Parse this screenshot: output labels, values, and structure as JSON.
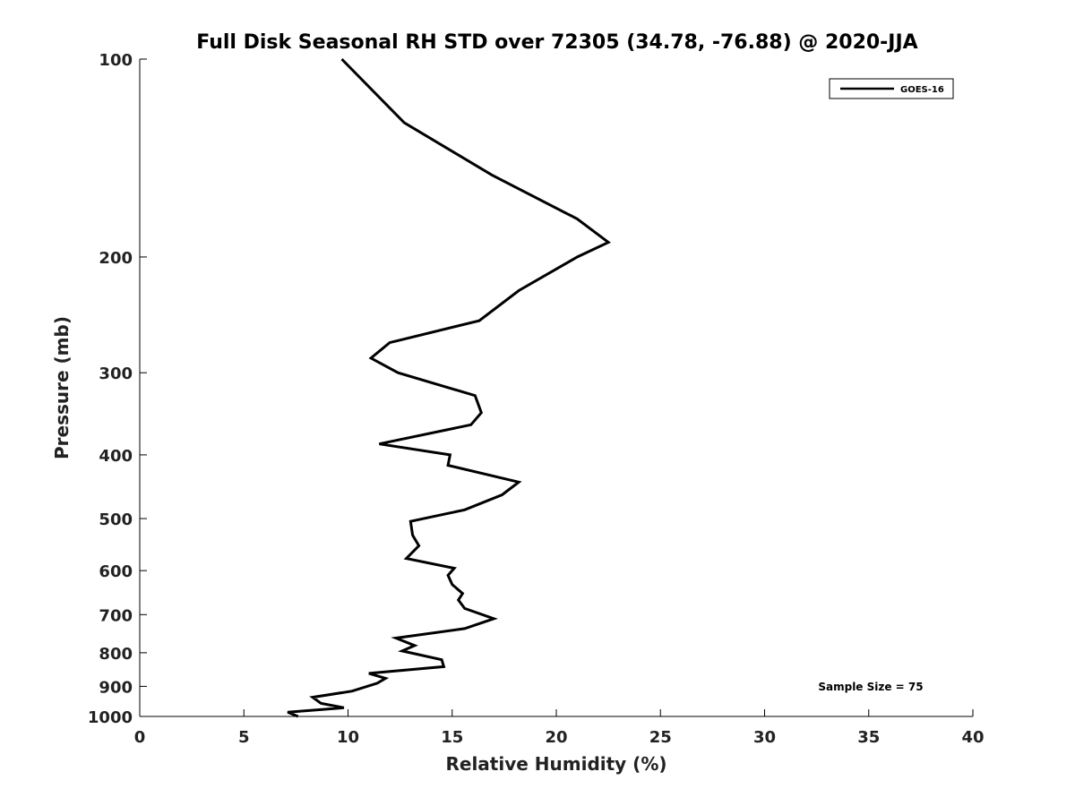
{
  "chart_data": {
    "type": "line",
    "title": "Full Disk Seasonal RH STD over 72305 (34.78, -76.88) @ 2020-JJA",
    "xlabel": "Relative Humidity (%)",
    "ylabel": "Pressure (mb)",
    "xlim": [
      0,
      40
    ],
    "ylim": [
      100,
      1000
    ],
    "yscale": "log",
    "yreversed": true,
    "xticks": [
      0,
      5,
      10,
      15,
      20,
      25,
      30,
      35,
      40
    ],
    "yticks": [
      100,
      200,
      300,
      400,
      500,
      600,
      700,
      800,
      900,
      1000
    ],
    "grid": false,
    "legend": {
      "location": "top-right",
      "entries": [
        "GOES-16"
      ]
    },
    "annotation": "Sample Size = 75",
    "series": [
      {
        "name": "GOES-16",
        "color": "#000000",
        "points": [
          [
            9.7,
            100
          ],
          [
            12.7,
            125
          ],
          [
            16.9,
            150
          ],
          [
            21.0,
            175
          ],
          [
            22.5,
            190
          ],
          [
            21.0,
            200
          ],
          [
            18.2,
            225
          ],
          [
            16.3,
            250
          ],
          [
            12.0,
            270
          ],
          [
            11.1,
            285
          ],
          [
            12.4,
            300
          ],
          [
            16.1,
            325
          ],
          [
            16.4,
            345
          ],
          [
            15.9,
            360
          ],
          [
            11.5,
            385
          ],
          [
            14.9,
            400
          ],
          [
            14.8,
            415
          ],
          [
            18.2,
            440
          ],
          [
            17.4,
            460
          ],
          [
            15.6,
            485
          ],
          [
            13.0,
            505
          ],
          [
            13.1,
            530
          ],
          [
            13.4,
            550
          ],
          [
            12.8,
            575
          ],
          [
            15.1,
            595
          ],
          [
            14.8,
            610
          ],
          [
            15.0,
            630
          ],
          [
            15.5,
            650
          ],
          [
            15.3,
            665
          ],
          [
            15.6,
            685
          ],
          [
            17.0,
            710
          ],
          [
            15.6,
            735
          ],
          [
            12.3,
            760
          ],
          [
            13.2,
            780
          ],
          [
            12.6,
            795
          ],
          [
            14.5,
            820
          ],
          [
            14.6,
            840
          ],
          [
            11.0,
            860
          ],
          [
            11.8,
            875
          ],
          [
            11.4,
            890
          ],
          [
            10.2,
            915
          ],
          [
            8.3,
            935
          ],
          [
            8.7,
            955
          ],
          [
            9.8,
            970
          ],
          [
            7.1,
            985
          ],
          [
            7.6,
            1000
          ]
        ]
      }
    ]
  }
}
